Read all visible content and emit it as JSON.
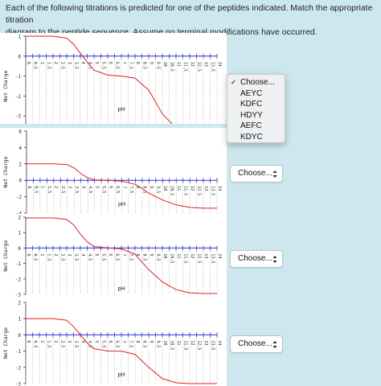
{
  "prompt": {
    "line1": "Each of the following titrations is predicted for one of the peptides indicated. Match the appropriate titration",
    "line2": "diagram to the peptide sequence. Assume no terminal modifications have occurred."
  },
  "dropdown": {
    "options": [
      "Choose...",
      "AEYC",
      "KDFC",
      "HDYY",
      "AEFC",
      "KDYC"
    ],
    "selected": "Choose..."
  },
  "selects": [
    {
      "value": "Choose..."
    },
    {
      "value": "Choose..."
    },
    {
      "value": "Choose..."
    }
  ],
  "colors": {
    "background": "#cde7ee",
    "axis": "#2a36c8",
    "curve": "#e02020"
  },
  "chart_data": [
    {
      "type": "line",
      "xlabel": "pH",
      "ylabel": "Net Charge",
      "ylim": [
        -4,
        1
      ],
      "yticks": [
        "1",
        "0",
        "-1",
        "-2",
        "-3",
        "-4"
      ],
      "xticks": [
        "0",
        "0.5",
        "1",
        "1.5",
        "2",
        "2.5",
        "3",
        "3.5",
        "4",
        "4.5",
        "5",
        "5.5",
        "6",
        "6.5",
        "7",
        "7.5",
        "8",
        "8.5",
        "9",
        "9.5",
        "10",
        "10.5",
        "11",
        "11.5",
        "12",
        "12.5",
        "13",
        "13.5",
        "14"
      ],
      "series": [
        {
          "x": [
            0,
            1,
            2,
            3,
            3.5,
            4,
            4.5,
            5,
            6,
            7,
            8,
            9,
            9.5,
            10,
            11,
            12,
            13,
            14
          ],
          "y": [
            1,
            1,
            1,
            0.9,
            0.6,
            0.15,
            -0.3,
            -0.7,
            -0.95,
            -1,
            -1.1,
            -1.7,
            -2.3,
            -2.9,
            -3.6,
            -3.85,
            -3.95,
            -4
          ]
        }
      ]
    },
    {
      "type": "line",
      "xlabel": "pH",
      "ylabel": "Net Charge",
      "ylim": [
        -4,
        6
      ],
      "yticks": [
        "6",
        "4",
        "2",
        "0",
        "-2",
        "-4"
      ],
      "xticks": [
        "0",
        "0.5",
        "1",
        "1.5",
        "2",
        "2.5",
        "3",
        "3.5",
        "4",
        "4.5",
        "5",
        "5.5",
        "6",
        "6.5",
        "7",
        "7.5",
        "8",
        "8.5",
        "9",
        "9.5",
        "10",
        "10.5",
        "11",
        "11.5",
        "12",
        "12.5",
        "13",
        "13.5",
        "14"
      ],
      "series": [
        {
          "x": [
            0,
            1,
            2,
            3,
            3.5,
            4,
            4.5,
            5,
            6,
            7,
            8,
            8.5,
            9,
            10,
            11,
            12,
            13,
            14
          ],
          "y": [
            2,
            2,
            2,
            1.9,
            1.5,
            0.8,
            0.3,
            0.05,
            0,
            -0.1,
            -0.5,
            -1,
            -1.6,
            -2.4,
            -3,
            -3.3,
            -3.4,
            -3.4
          ]
        }
      ]
    },
    {
      "type": "line",
      "xlabel": "pH",
      "ylabel": "Net Charge",
      "ylim": [
        -3,
        2
      ],
      "yticks": [
        "2",
        "1",
        "0",
        "-1",
        "-2",
        "-3"
      ],
      "xticks": [
        "0",
        "0.5",
        "1",
        "1.5",
        "2",
        "2.5",
        "3",
        "3.5",
        "4",
        "4.5",
        "5",
        "5.5",
        "6",
        "6.5",
        "7",
        "7.5",
        "8",
        "8.5",
        "9",
        "9.5",
        "10",
        "10.5",
        "11",
        "11.5",
        "12",
        "12.5",
        "13",
        "13.5",
        "14"
      ],
      "series": [
        {
          "x": [
            0,
            1,
            2,
            3,
            3.5,
            4,
            4.5,
            5,
            6,
            7,
            8,
            8.5,
            9,
            10,
            11,
            12,
            13,
            14
          ],
          "y": [
            1.95,
            1.95,
            1.95,
            1.85,
            1.5,
            0.9,
            0.4,
            0.1,
            0,
            -0.05,
            -0.4,
            -0.9,
            -1.4,
            -2.2,
            -2.7,
            -2.9,
            -2.95,
            -2.95
          ]
        }
      ]
    },
    {
      "type": "line",
      "xlabel": "pH",
      "ylabel": "Net Charge",
      "ylim": [
        -3,
        2
      ],
      "yticks": [
        "2",
        "1",
        "0",
        "-1",
        "-2",
        "-3"
      ],
      "xticks": [
        "0",
        "0.5",
        "1",
        "1.5",
        "2",
        "2.5",
        "3",
        "3.5",
        "4",
        "4.5",
        "5",
        "5.5",
        "6",
        "6.5",
        "7",
        "7.5",
        "8",
        "8.5",
        "9",
        "9.5",
        "10",
        "10.5",
        "11",
        "11.5",
        "12",
        "12.5",
        "13",
        "13.5",
        "14"
      ],
      "series": [
        {
          "x": [
            0,
            1,
            2,
            3,
            3.5,
            4,
            4.5,
            5,
            6,
            7,
            8,
            9,
            10,
            11,
            12,
            13,
            14
          ],
          "y": [
            1,
            1,
            1,
            0.9,
            0.5,
            0,
            -0.5,
            -0.85,
            -1,
            -1,
            -1.2,
            -2,
            -2.7,
            -2.95,
            -3,
            -3,
            -3
          ]
        }
      ]
    }
  ]
}
